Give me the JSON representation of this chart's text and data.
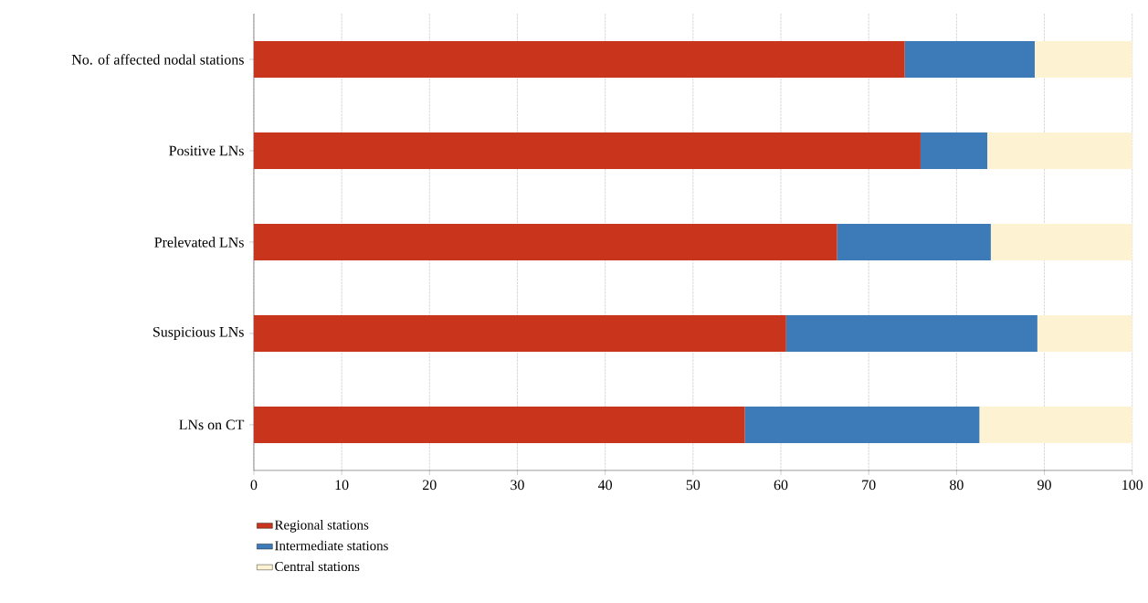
{
  "chart_data": {
    "type": "bar",
    "orientation": "horizontal",
    "stacked": true,
    "categories": [
      "No. of affected nodal stations",
      "Positive LNs",
      "Prelevated LNs",
      "Suspicious LNs",
      "LNs on CT"
    ],
    "series": [
      {
        "name": "Regional stations",
        "color": "#c8341c",
        "values": [
          74.1,
          75.9,
          66.4,
          60.6,
          55.9
        ]
      },
      {
        "name": "Intermediate stations",
        "color": "#3d7ab8",
        "values": [
          14.8,
          7.6,
          17.5,
          28.6,
          26.7
        ]
      },
      {
        "name": "Central stations",
        "color": "#fdf3d3",
        "values": [
          11.1,
          16.5,
          16.1,
          10.8,
          17.4
        ]
      }
    ],
    "xlim": [
      0,
      100
    ],
    "xticks": [
      0,
      10,
      20,
      30,
      40,
      50,
      60,
      70,
      80,
      90,
      100
    ],
    "grid": "x",
    "legend": "bottom"
  }
}
